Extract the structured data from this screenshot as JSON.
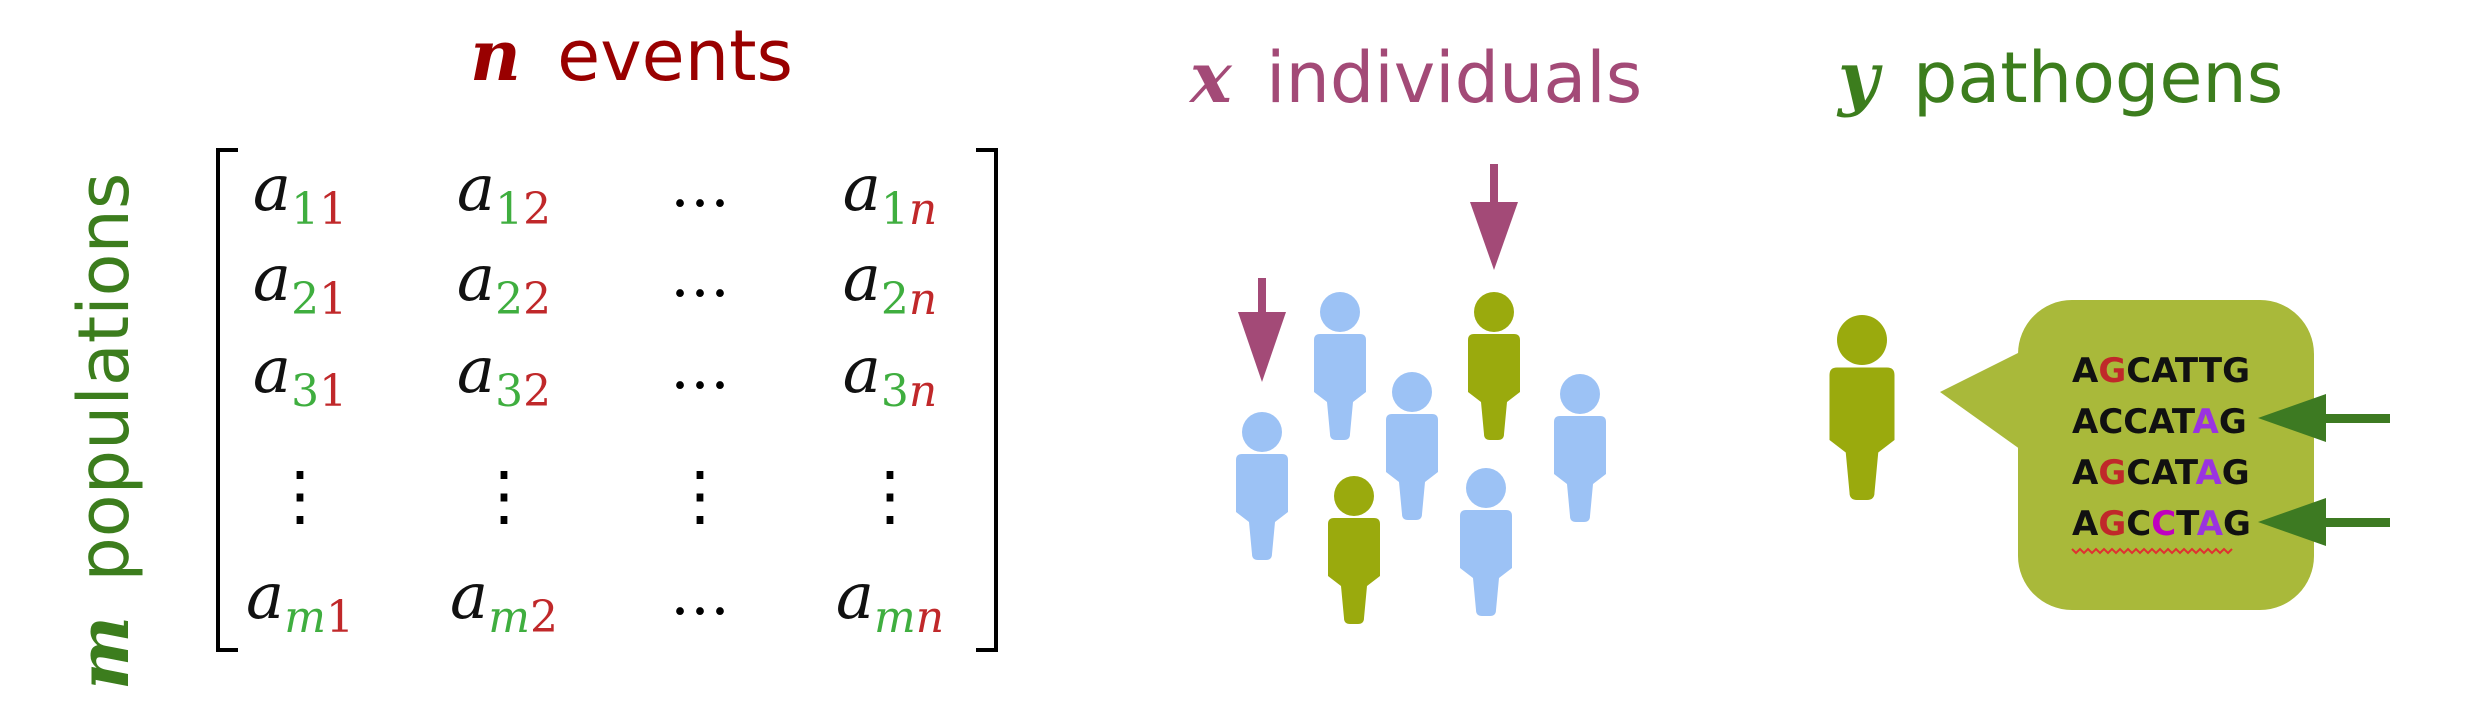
{
  "colors": {
    "dark_red": "#990000",
    "sub_red": "#c0282a",
    "sub_green": "#3fae3f",
    "mauve": "#a34a77",
    "dark_green": "#3c7d1d",
    "light_blue": "#9cc2f5",
    "olive": "#9aaa0d",
    "bubble": "#a9b93a",
    "arrow_green": "#3d7a22",
    "magenta": "#c000c0",
    "violet": "#9a33e0"
  },
  "titles": {
    "events": {
      "var": "n",
      "word": "events"
    },
    "individuals": {
      "var": "x",
      "word": "individuals"
    },
    "pathogens": {
      "var": "y",
      "word": "pathogens"
    },
    "populations": {
      "var": "m",
      "word": "populations"
    }
  },
  "matrix": {
    "base": "a",
    "rows": [
      [
        {
          "r": "1",
          "c": "1"
        },
        {
          "r": "1",
          "c": "2"
        },
        {
          "dots": "…"
        },
        {
          "r": "1",
          "c": "n"
        }
      ],
      [
        {
          "r": "2",
          "c": "1"
        },
        {
          "r": "2",
          "c": "2"
        },
        {
          "dots": "…"
        },
        {
          "r": "2",
          "c": "n"
        }
      ],
      [
        {
          "r": "3",
          "c": "1"
        },
        {
          "r": "3",
          "c": "2"
        },
        {
          "dots": "…"
        },
        {
          "r": "3",
          "c": "n"
        }
      ],
      [
        {
          "vdots": "⋮"
        },
        {
          "vdots": "⋮"
        },
        {
          "vdots": "⋮"
        },
        {
          "vdots": "⋮"
        }
      ],
      [
        {
          "r": "m",
          "c": "1"
        },
        {
          "r": "m",
          "c": "2"
        },
        {
          "dots": "…"
        },
        {
          "r": "m",
          "c": "n"
        }
      ]
    ]
  },
  "sequences": [
    {
      "text": "AGCATTG",
      "highlights": [
        {
          "index": 1,
          "color": "sub_red"
        }
      ]
    },
    {
      "text": "ACCATAG",
      "highlights": [
        {
          "index": 5,
          "color": "violet"
        }
      ]
    },
    {
      "text": "AGCATAG",
      "highlights": [
        {
          "index": 1,
          "color": "sub_red"
        },
        {
          "index": 5,
          "color": "violet"
        }
      ]
    },
    {
      "text": "AGCCTAG",
      "highlights": [
        {
          "index": 1,
          "color": "sub_red"
        },
        {
          "index": 3,
          "color": "magenta"
        },
        {
          "index": 5,
          "color": "violet"
        }
      ]
    }
  ]
}
